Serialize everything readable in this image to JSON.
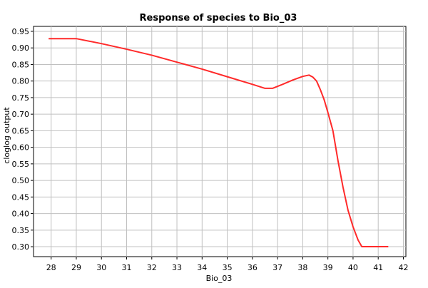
{
  "chart_data": {
    "type": "line",
    "title": "Response of species to Bio_03",
    "xlabel": "Bio_03",
    "ylabel": "cloglog output",
    "xlim": [
      27.3,
      42.1
    ],
    "ylim": [
      0.27,
      0.965
    ],
    "x_ticks": [
      28,
      29,
      30,
      31,
      32,
      33,
      34,
      35,
      36,
      37,
      38,
      39,
      40,
      41,
      42
    ],
    "y_ticks": [
      0.3,
      0.35,
      0.4,
      0.45,
      0.5,
      0.55,
      0.6,
      0.65,
      0.7,
      0.75,
      0.8,
      0.85,
      0.9,
      0.95
    ],
    "grid": true,
    "series": [
      {
        "color": "#ff2a2a",
        "x": [
          27.9,
          29.0,
          30.0,
          31.0,
          32.0,
          33.0,
          34.0,
          35.0,
          36.0,
          36.5,
          36.8,
          37.2,
          37.6,
          38.0,
          38.25,
          38.4,
          38.55,
          38.7,
          38.85,
          39.0,
          39.2,
          39.4,
          39.6,
          39.8,
          40.0,
          40.2,
          40.35,
          41.4
        ],
        "y": [
          0.928,
          0.928,
          0.913,
          0.896,
          0.878,
          0.857,
          0.836,
          0.813,
          0.79,
          0.778,
          0.778,
          0.79,
          0.803,
          0.814,
          0.818,
          0.812,
          0.8,
          0.774,
          0.744,
          0.705,
          0.65,
          0.56,
          0.48,
          0.41,
          0.36,
          0.32,
          0.3,
          0.3
        ]
      }
    ]
  }
}
